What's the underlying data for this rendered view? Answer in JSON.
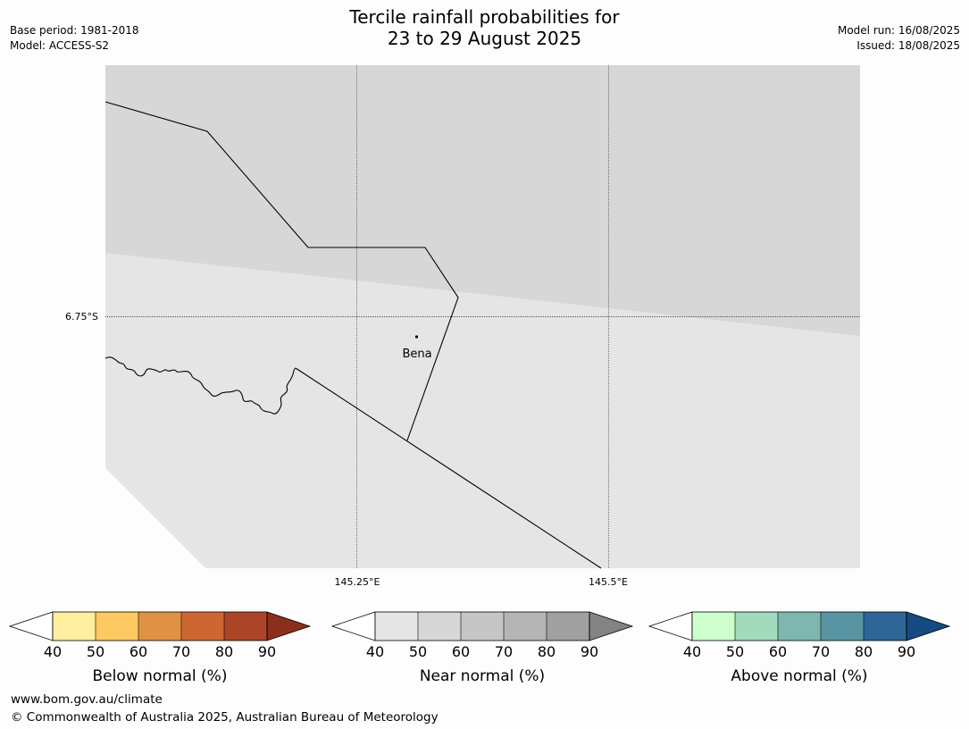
{
  "header": {
    "title_line1": "Tercile rainfall probabilities for",
    "title_line2": "23 to 29 August 2025",
    "base_period": "Base period: 1981-2018",
    "model": "Model: ACCESS-S2",
    "model_run": "Model run: 16/08/2025",
    "issued": "Issued: 18/08/2025"
  },
  "map": {
    "lat_label": "6.75°S",
    "lon_labels": [
      "145.25°E",
      "145.5°E"
    ],
    "place": "Bena",
    "colors": {
      "near_normal_50_60": "#d7d7d7",
      "near_normal_40_50": "#e5e5e5",
      "background": "#fdfdfd"
    }
  },
  "colorbars": [
    {
      "label": "Below normal (%)",
      "ticks": [
        "40",
        "50",
        "60",
        "70",
        "80",
        "90"
      ],
      "colors": [
        "#ffeda0",
        "#fec862",
        "#e09143",
        "#cd6632",
        "#ac4527",
        "#8b2f1c"
      ]
    },
    {
      "label": "Near normal (%)",
      "ticks": [
        "40",
        "50",
        "60",
        "70",
        "80",
        "90"
      ],
      "colors": [
        "#e5e5e5",
        "#d7d7d7",
        "#c6c6c6",
        "#b5b5b5",
        "#a0a0a0",
        "#838383"
      ]
    },
    {
      "label": "Above normal (%)",
      "ticks": [
        "40",
        "50",
        "60",
        "70",
        "80",
        "90"
      ],
      "colors": [
        "#ccffcc",
        "#a3d9bc",
        "#7fb7b0",
        "#5994a2",
        "#2f6698",
        "#154b82"
      ]
    }
  ],
  "footer": {
    "url": "www.bom.gov.au/climate",
    "copyright": "© Commonwealth of Australia 2025, Australian Bureau of Meteorology"
  }
}
